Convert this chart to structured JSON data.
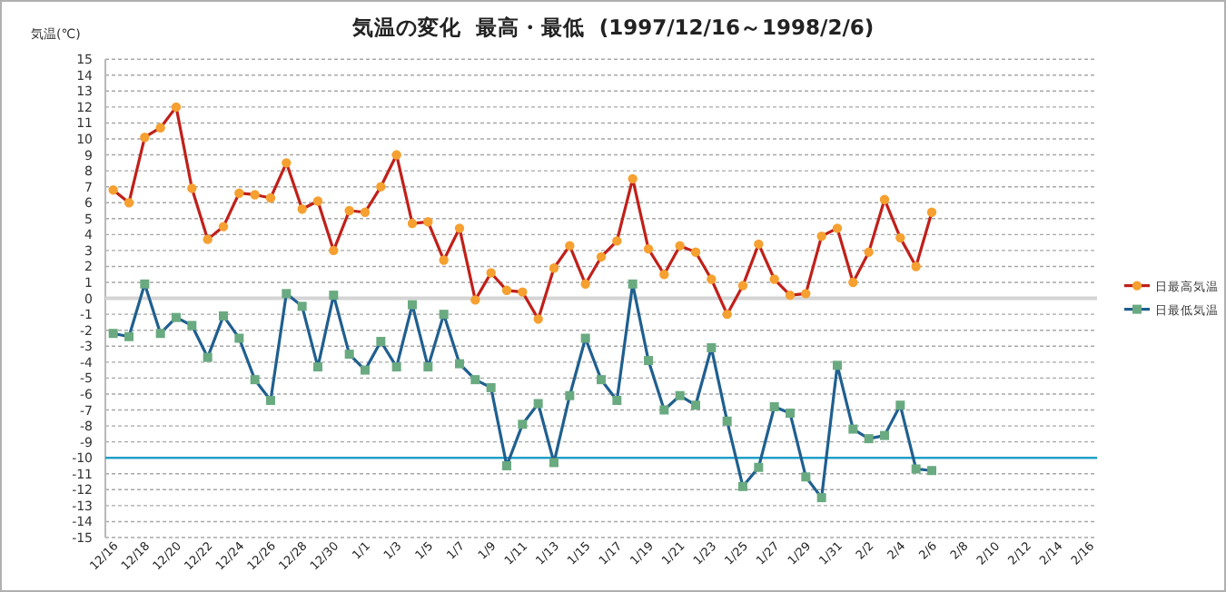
{
  "chart_data": {
    "type": "line",
    "title": "気温の変化  最高・最低  (1997/12/16～1998/2/6)",
    "ylabel": "気温(℃)",
    "categories": [
      "12/16",
      null,
      "12/18",
      null,
      "12/20",
      null,
      "12/22",
      null,
      "12/24",
      null,
      "12/26",
      null,
      "12/28",
      null,
      "12/30",
      null,
      "1/1",
      null,
      "1/3",
      null,
      "1/5",
      null,
      "1/7",
      null,
      "1/9",
      null,
      "1/11",
      null,
      "1/13",
      null,
      "1/15",
      null,
      "1/17",
      null,
      "1/19",
      null,
      "1/21",
      null,
      "1/23",
      null,
      "1/25",
      null,
      "1/27",
      null,
      "1/29",
      null,
      "1/31",
      null,
      "2/2",
      null,
      "2/4",
      null,
      "2/6",
      null,
      "2/8",
      null,
      "2/10",
      null,
      "2/12",
      null,
      "2/14",
      null,
      "2/16"
    ],
    "series": [
      {
        "name": "日最高気温",
        "color": "#c0201a",
        "marker": "circle",
        "values": [
          6.8,
          6.0,
          10.1,
          10.7,
          12.0,
          6.9,
          3.7,
          4.5,
          6.6,
          6.5,
          6.3,
          8.5,
          5.6,
          6.1,
          3.0,
          5.5,
          5.4,
          7.0,
          9.0,
          4.7,
          4.8,
          2.4,
          4.4,
          -0.1,
          1.6,
          0.5,
          0.4,
          -1.3,
          1.9,
          3.3,
          0.9,
          2.6,
          3.6,
          7.5,
          3.1,
          1.5,
          3.3,
          2.9,
          1.2,
          -1.0,
          0.8,
          3.4,
          1.2,
          0.2,
          0.3,
          3.9,
          4.4,
          1.0,
          2.9,
          6.2,
          3.8,
          2.0,
          5.4,
          null,
          null,
          null,
          null,
          null,
          null,
          null,
          null,
          null,
          null
        ]
      },
      {
        "name": "日最低気温",
        "color": "#1f5f8f",
        "marker": "square",
        "values": [
          -2.2,
          -2.4,
          0.9,
          -2.2,
          -1.2,
          -1.7,
          -3.7,
          -1.1,
          -2.5,
          -5.1,
          -6.4,
          0.3,
          -0.5,
          -4.3,
          0.2,
          -3.5,
          -4.5,
          -2.7,
          -4.3,
          -0.4,
          -4.3,
          -1.0,
          -4.1,
          -5.1,
          -5.6,
          -10.5,
          -7.9,
          -6.6,
          -10.3,
          -6.1,
          -2.5,
          -5.1,
          -6.4,
          0.9,
          -3.9,
          -7.0,
          -6.1,
          -6.7,
          -3.1,
          -7.7,
          -11.8,
          -10.6,
          -6.8,
          -7.2,
          -11.2,
          -12.5,
          -4.2,
          -8.2,
          -8.8,
          -8.6,
          -6.7,
          -10.7,
          -10.8,
          null,
          null,
          null,
          null,
          null,
          null,
          null,
          null,
          null,
          null
        ]
      }
    ],
    "ylim": [
      -15,
      15
    ],
    "yticks": [
      -15,
      -14,
      -13,
      -12,
      -11,
      -10,
      -9,
      -8,
      -7,
      -6,
      -5,
      -4,
      -3,
      -2,
      -1,
      0,
      1,
      2,
      3,
      4,
      5,
      6,
      7,
      8,
      9,
      10,
      11,
      12,
      13,
      14,
      15
    ],
    "ref_lines": [
      {
        "axis": "y",
        "value": -10,
        "color": "#22a0c8"
      }
    ],
    "grid": "y",
    "legend": "right"
  }
}
